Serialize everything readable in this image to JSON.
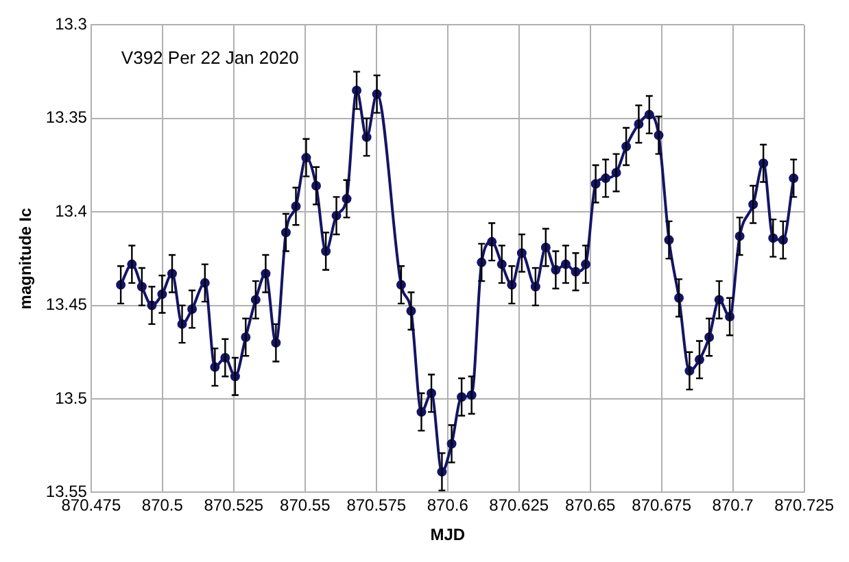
{
  "chart_data": {
    "type": "line",
    "title": "V392 Per 22 Jan 2020",
    "xlabel": "MJD",
    "ylabel": "magnitude Ic",
    "x": [
      870.4854,
      870.4893,
      870.4928,
      870.4963,
      870.4999,
      870.5034,
      870.5069,
      870.5104,
      870.5149,
      870.5184,
      870.522,
      870.5255,
      870.5292,
      870.5327,
      870.5362,
      870.5398,
      870.5433,
      870.5468,
      870.5504,
      870.5539,
      870.5573,
      870.561,
      870.5646,
      870.5681,
      870.5716,
      870.5752,
      870.5837,
      870.5872,
      870.5908,
      870.5943,
      870.598,
      870.6014,
      870.6049,
      870.6084,
      870.6119,
      870.6155,
      870.619,
      870.6225,
      870.626,
      870.6308,
      870.6344,
      870.6379,
      870.6414,
      870.6449,
      870.6484,
      870.6519,
      870.6554,
      870.6591,
      870.6626,
      870.667,
      870.6707,
      870.674,
      870.6776,
      870.6811,
      870.6848,
      870.6883,
      870.6917,
      870.6952,
      870.6989,
      870.7024,
      870.7071,
      870.7107,
      870.7141,
      870.7176,
      870.7213
    ],
    "series": [
      {
        "color": "#141466",
        "values": [
          13.439,
          13.428,
          13.44,
          13.45,
          13.444,
          13.433,
          13.46,
          13.452,
          13.438,
          13.483,
          13.478,
          13.488,
          13.467,
          13.447,
          13.433,
          13.47,
          13.411,
          13.397,
          13.371,
          13.386,
          13.421,
          13.402,
          13.393,
          13.335,
          13.36,
          13.337,
          13.439,
          13.453,
          13.507,
          13.497,
          13.539,
          13.524,
          13.499,
          13.498,
          13.427,
          13.416,
          13.428,
          13.439,
          13.422,
          13.44,
          13.419,
          13.431,
          13.428,
          13.432,
          13.428,
          13.385,
          13.382,
          13.379,
          13.365,
          13.353,
          13.348,
          13.359,
          13.415,
          13.446,
          13.485,
          13.479,
          13.467,
          13.447,
          13.456,
          13.413,
          13.396,
          13.374,
          13.414,
          13.415,
          13.382
        ],
        "errors": [
          0.01,
          0.01,
          0.01,
          0.01,
          0.01,
          0.01,
          0.01,
          0.01,
          0.01,
          0.01,
          0.01,
          0.01,
          0.01,
          0.01,
          0.01,
          0.01,
          0.01,
          0.01,
          0.01,
          0.01,
          0.01,
          0.01,
          0.01,
          0.01,
          0.01,
          0.01,
          0.01,
          0.01,
          0.01,
          0.01,
          0.01,
          0.01,
          0.01,
          0.01,
          0.01,
          0.01,
          0.01,
          0.01,
          0.01,
          0.01,
          0.01,
          0.01,
          0.01,
          0.01,
          0.01,
          0.01,
          0.01,
          0.01,
          0.01,
          0.01,
          0.01,
          0.01,
          0.01,
          0.01,
          0.01,
          0.01,
          0.01,
          0.01,
          0.01,
          0.01,
          0.01,
          0.01,
          0.01,
          0.01,
          0.01
        ]
      }
    ],
    "xlim": [
      870.475,
      870.725
    ],
    "xticks": [
      870.475,
      870.5,
      870.525,
      870.55,
      870.575,
      870.6,
      870.625,
      870.65,
      870.675,
      870.7,
      870.725
    ],
    "ylim": [
      13.55,
      13.3
    ],
    "yticks": [
      13.3,
      13.35,
      13.4,
      13.45,
      13.5,
      13.55
    ],
    "grid": true,
    "legend": false,
    "marker": "circle",
    "line_style": "solid"
  }
}
